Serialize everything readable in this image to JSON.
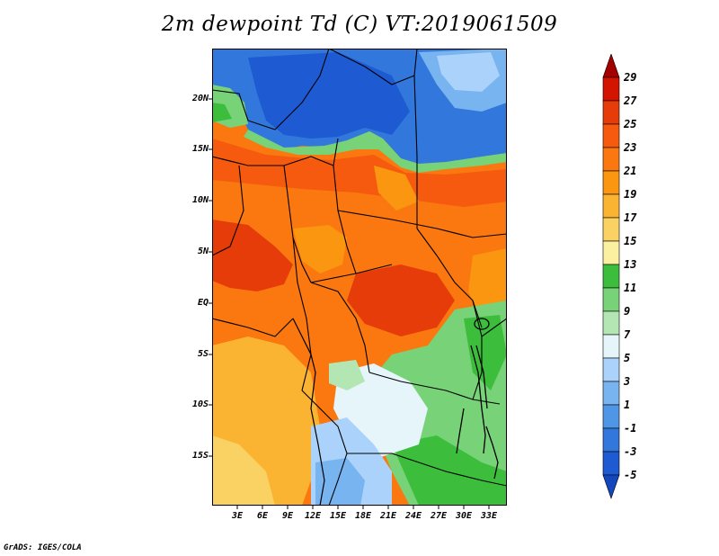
{
  "title": "2m dewpoint Td (C) VT:2019061509",
  "credit": "GrADS: IGES/COLA",
  "lat_labels": [
    "20N",
    "15N",
    "10N",
    "5N",
    "EQ",
    "5S",
    "10S",
    "15S"
  ],
  "lon_labels": [
    "3E",
    "6E",
    "9E",
    "12E",
    "15E",
    "18E",
    "21E",
    "24E",
    "27E",
    "30E",
    "33E"
  ],
  "colorbar": {
    "labels": [
      "29",
      "27",
      "25",
      "23",
      "21",
      "19",
      "17",
      "15",
      "13",
      "11",
      "9",
      "7",
      "5",
      "3",
      "1",
      "-1",
      "-3",
      "-5"
    ],
    "colors": [
      "#a50000",
      "#d21400",
      "#e63c0a",
      "#f55a0f",
      "#fa780f",
      "#fa960f",
      "#fab432",
      "#fad264",
      "#faf0a0",
      "#3cbe3c",
      "#78d278",
      "#b4e6b4",
      "#e6f5fa",
      "#aad2fa",
      "#78b4f0",
      "#5096e6",
      "#3278dc",
      "#1e5ad2",
      "#1446be"
    ]
  }
}
